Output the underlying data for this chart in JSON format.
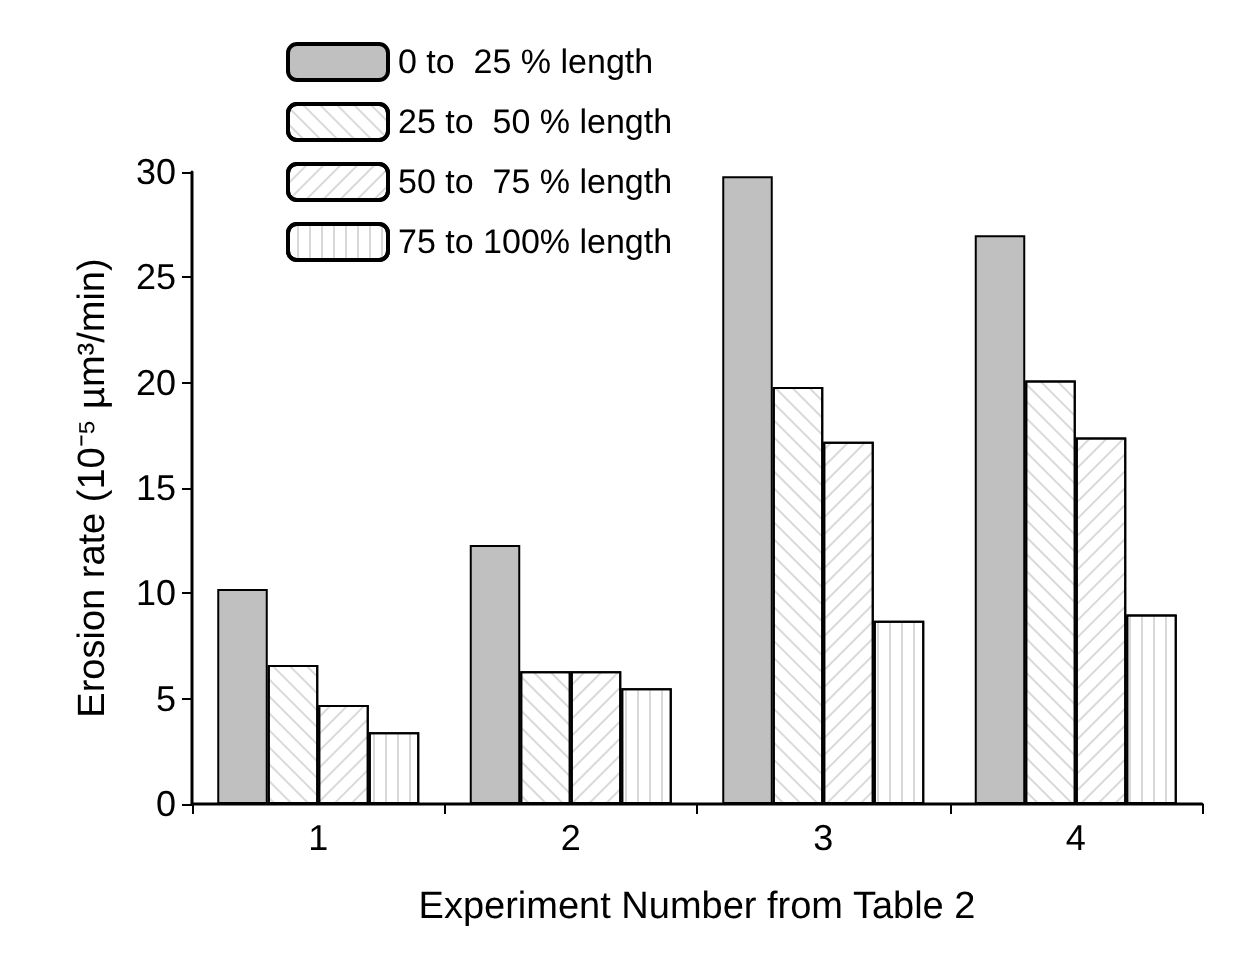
{
  "chart_data": {
    "type": "bar",
    "xlabel": "Experiment Number from Table 2",
    "ylabel": "Erosion rate (10⁻⁵ µm³/min)",
    "categories": [
      "1",
      "2",
      "3",
      "4"
    ],
    "series": [
      {
        "name": "0 to  25 % length",
        "color": "#c0c0c0",
        "values": [
          10.2,
          12.3,
          29.8,
          27.0
        ]
      },
      {
        "name": "25 to  50 % length",
        "color": "#ffffff",
        "values": [
          6.6,
          6.3,
          19.8,
          20.1
        ]
      },
      {
        "name": "50 to  75 % length",
        "color": "#ffffff",
        "values": [
          4.7,
          6.3,
          17.2,
          17.4
        ]
      },
      {
        "name": "75 to 100% length",
        "color": "#ffffff",
        "values": [
          3.4,
          5.5,
          8.7,
          9.0
        ]
      }
    ],
    "ylim": [
      0,
      30
    ],
    "yticks": [
      0,
      5,
      10,
      15,
      20,
      25,
      30
    ],
    "grid": false,
    "legend": "top left"
  }
}
